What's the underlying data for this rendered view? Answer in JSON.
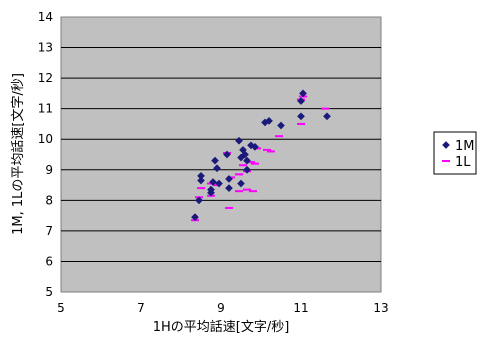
{
  "chart_data": {
    "type": "scatter",
    "title": "",
    "xlabel": "1Hの平均話速[文字/秒]",
    "ylabel": "1M, 1Lの平均話速[文字/秒]",
    "xlim": [
      5,
      13
    ],
    "ylim": [
      5,
      14
    ],
    "xticks": [
      "5",
      "7",
      "9",
      "11",
      "13"
    ],
    "yticks": [
      "5",
      "6",
      "7",
      "8",
      "9",
      "10",
      "11",
      "12",
      "13",
      "14"
    ],
    "grid": true,
    "legend_position": "right",
    "plot_background": "#c0c0c0",
    "series": [
      {
        "name": "1M",
        "marker": "diamond",
        "color": "#1a1a7a",
        "points": [
          [
            8.35,
            7.45
          ],
          [
            8.45,
            8.0
          ],
          [
            8.5,
            8.65
          ],
          [
            8.5,
            8.8
          ],
          [
            8.75,
            8.35
          ],
          [
            8.75,
            8.25
          ],
          [
            8.8,
            8.6
          ],
          [
            8.85,
            9.3
          ],
          [
            8.9,
            9.05
          ],
          [
            8.95,
            8.55
          ],
          [
            9.15,
            9.5
          ],
          [
            9.2,
            8.7
          ],
          [
            9.2,
            8.4
          ],
          [
            9.45,
            9.95
          ],
          [
            9.5,
            8.55
          ],
          [
            9.5,
            9.4
          ],
          [
            9.55,
            9.65
          ],
          [
            9.6,
            9.5
          ],
          [
            9.65,
            9.3
          ],
          [
            9.65,
            9.0
          ],
          [
            9.75,
            9.8
          ],
          [
            9.85,
            9.75
          ],
          [
            10.1,
            10.55
          ],
          [
            10.2,
            10.6
          ],
          [
            10.5,
            10.45
          ],
          [
            11.0,
            11.25
          ],
          [
            11.05,
            11.5
          ],
          [
            11.0,
            10.75
          ],
          [
            11.65,
            10.75
          ]
        ]
      },
      {
        "name": "1L",
        "marker": "dash",
        "color": "#ff00ff",
        "points": [
          [
            8.35,
            7.35
          ],
          [
            8.45,
            8.1
          ],
          [
            8.5,
            8.4
          ],
          [
            8.75,
            8.55
          ],
          [
            8.75,
            8.15
          ],
          [
            8.9,
            8.5
          ],
          [
            9.15,
            9.55
          ],
          [
            9.2,
            7.75
          ],
          [
            9.25,
            8.75
          ],
          [
            9.45,
            8.85
          ],
          [
            9.45,
            8.3
          ],
          [
            9.55,
            9.15
          ],
          [
            9.65,
            8.35
          ],
          [
            9.65,
            8.95
          ],
          [
            9.75,
            9.25
          ],
          [
            9.8,
            8.3
          ],
          [
            9.9,
            9.7
          ],
          [
            9.85,
            9.2
          ],
          [
            10.15,
            9.65
          ],
          [
            10.25,
            9.6
          ],
          [
            10.45,
            10.1
          ],
          [
            11.0,
            10.5
          ],
          [
            11.0,
            11.3
          ],
          [
            11.05,
            11.4
          ],
          [
            11.6,
            11.0
          ]
        ]
      }
    ]
  }
}
